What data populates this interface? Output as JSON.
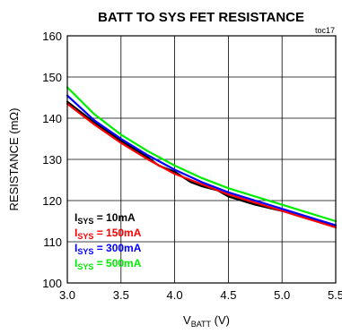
{
  "chart_data": {
    "type": "line",
    "title": "BATT TO SYS FET RESISTANCE",
    "tag": "toc17",
    "ylabel": "RESISTANCE (mΩ)",
    "xlabel_main": "V",
    "xlabel_sub": "BATT",
    "xlabel_unit": " (V)",
    "xlim": [
      3.0,
      5.5
    ],
    "ylim": [
      100,
      160
    ],
    "x_ticks": [
      "3.0",
      "3.5",
      "4.0",
      "4.5",
      "5.0",
      "5.5"
    ],
    "y_ticks": [
      "100",
      "110",
      "120",
      "130",
      "140",
      "150",
      "160"
    ],
    "grid": true,
    "legend": "lower-left",
    "series": [
      {
        "name_main": "I",
        "name_sub": "SYS",
        "name_rest": " = 10mA",
        "color": "#000000",
        "x": [
          3.0,
          3.25,
          3.5,
          3.75,
          3.85,
          4.0,
          4.15,
          4.25,
          4.4,
          4.5,
          4.75,
          5.0,
          5.25,
          5.5
        ],
        "y": [
          144,
          139,
          134.5,
          130.5,
          128.5,
          127,
          124.5,
          123.5,
          122.5,
          121,
          119,
          117.5,
          115.5,
          114
        ]
      },
      {
        "name_main": "I",
        "name_sub": "SYS",
        "name_rest": " = 150mA",
        "color": "#ff0000",
        "x": [
          3.0,
          3.25,
          3.5,
          3.75,
          4.0,
          4.25,
          4.5,
          4.75,
          5.0,
          5.25,
          5.5
        ],
        "y": [
          143.5,
          138.5,
          134,
          130,
          126.5,
          124,
          121.5,
          119.5,
          117.5,
          115.5,
          113.5
        ]
      },
      {
        "name_main": "I",
        "name_sub": "SYS",
        "name_rest": " = 300mA",
        "color": "#0000ff",
        "x": [
          3.0,
          3.25,
          3.5,
          3.75,
          4.0,
          4.25,
          4.5,
          4.75,
          5.0,
          5.25,
          5.5
        ],
        "y": [
          145.5,
          139.5,
          135,
          131,
          127.5,
          124.5,
          122,
          120,
          118,
          116,
          114
        ]
      },
      {
        "name_main": "I",
        "name_sub": "SYS",
        "name_rest": " = 500mA",
        "color": "#00ee00",
        "x": [
          3.0,
          3.25,
          3.5,
          3.75,
          4.0,
          4.25,
          4.5,
          4.75,
          5.0,
          5.25,
          5.5
        ],
        "y": [
          147.5,
          141,
          136,
          132,
          128.5,
          125.5,
          123,
          121,
          119,
          117,
          115
        ]
      }
    ]
  }
}
